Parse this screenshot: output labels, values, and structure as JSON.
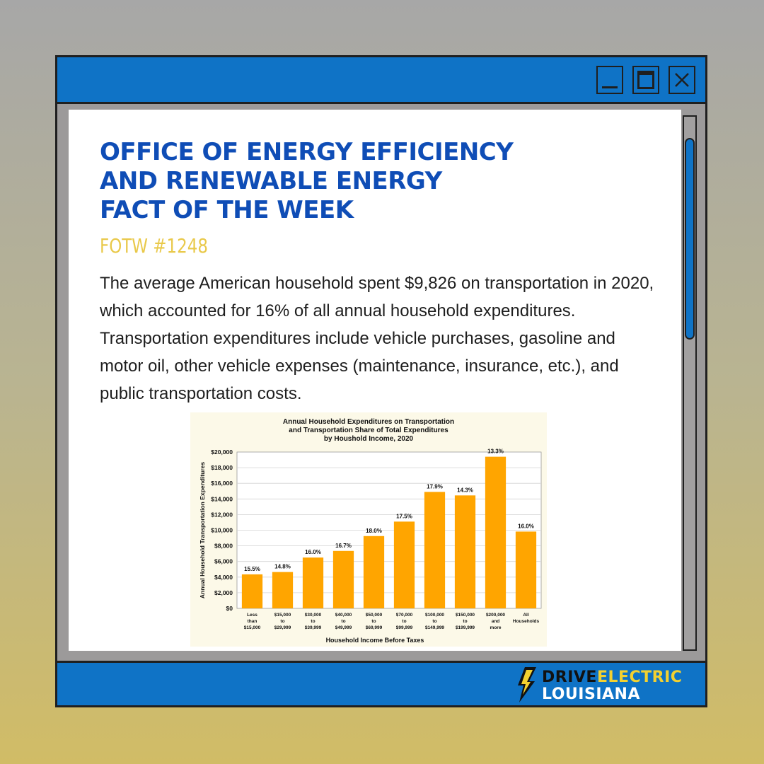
{
  "headline": {
    "line1": "OFFICE OF ENERGY EFFICIENCY",
    "line2": "AND RENEWABLE ENERGY",
    "line3": "FACT OF THE WEEK"
  },
  "fotw": "FOTW #1248",
  "description": "The average American household spent $9,826 on transportation in 2020, which accounted for 16% of all annual household expenditures. Transportation expenditures include vehicle purchases, gasoline and motor oil, other vehicle expenses (maintenance, insurance, etc.), and public transportation costs.",
  "colors": {
    "window_blue": "#0f73c6",
    "headline_blue": "#0f4db6",
    "fotw_yellow": "#e9c94b",
    "bar_orange": "#ffa500"
  },
  "window_controls": {
    "minimize": "minimize-icon",
    "maximize": "maximize-icon",
    "close": "close-icon"
  },
  "logo": {
    "drive": "DRIVE",
    "electric": "ELECTRIC",
    "louisiana": "LOUISIANA"
  },
  "chart_data": {
    "type": "bar",
    "title": "Annual Household Expenditures on Transportation and Transportation Share of Total Expenditures by Houshold Income, 2020",
    "title_lines": [
      "Annual Household Expenditures on Transportation",
      "and Transportation Share of Total Expenditures",
      "by Houshold Income, 2020"
    ],
    "xlabel": "Household Income Before Taxes",
    "ylabel": "Annual Household Transportation Expenditures",
    "ylim": [
      0,
      20000
    ],
    "yticks": [
      "$0",
      "$2,000",
      "$4,000",
      "$6,000",
      "$8,000",
      "$10,000",
      "$12,000",
      "$14,000",
      "$16,000",
      "$18,000",
      "$20,000"
    ],
    "grid": true,
    "categories": [
      [
        "Less",
        "than",
        "$15,000"
      ],
      [
        "$15,000",
        "to",
        "$29,999"
      ],
      [
        "$30,000",
        "to",
        "$39,999"
      ],
      [
        "$40,000",
        "to",
        "$49,999"
      ],
      [
        "$50,000",
        "to",
        "$69,999"
      ],
      [
        "$70,000",
        "to",
        "$99,999"
      ],
      [
        "$100,000",
        "to",
        "$149,999"
      ],
      [
        "$150,000",
        "to",
        "$199,999"
      ],
      [
        "$200,000",
        "and",
        "more"
      ],
      [
        "All",
        "Households"
      ]
    ],
    "values": [
      4350,
      4650,
      6500,
      7350,
      9250,
      11100,
      14900,
      14450,
      19400,
      9826
    ],
    "data_labels": [
      "15.5%",
      "14.8%",
      "16.0%",
      "16.7%",
      "18.0%",
      "17.5%",
      "17.9%",
      "14.3%",
      "13.3%",
      "16.0%"
    ]
  }
}
